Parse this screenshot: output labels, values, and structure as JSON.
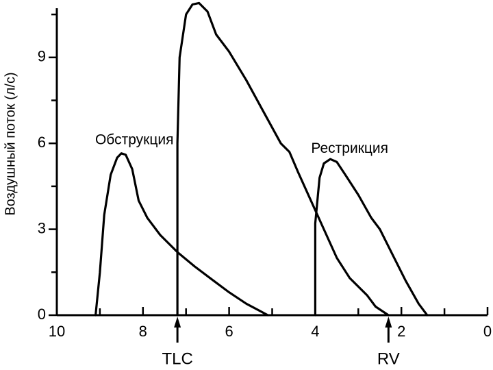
{
  "chart_data": {
    "type": "line",
    "title": "",
    "xlabel": "",
    "ylabel": "Воздушный поток (л/с)",
    "xlim": [
      10,
      0
    ],
    "ylim": [
      0,
      11
    ],
    "x_reversed": true,
    "x_ticks": [
      10,
      8,
      6,
      4,
      2,
      0
    ],
    "y_ticks": [
      0,
      3,
      6,
      9
    ],
    "grid": false,
    "series": [
      {
        "name": "",
        "x": [
          7.2,
          7.2,
          7.15,
          7.0,
          6.85,
          6.7,
          6.5,
          6.3,
          6.0,
          5.6,
          5.2,
          4.8,
          4.6,
          4.4,
          4.1,
          3.8,
          3.5,
          3.2,
          3.0,
          2.8,
          2.6,
          2.3
        ],
        "y": [
          0,
          6.0,
          9.0,
          10.5,
          10.85,
          10.9,
          10.6,
          9.8,
          9.2,
          8.2,
          7.1,
          6.0,
          5.7,
          5.0,
          4.0,
          3.0,
          2.0,
          1.3,
          1.0,
          0.7,
          0.3,
          0.0
        ]
      },
      {
        "name": "Обструкция",
        "x": [
          9.1,
          9.0,
          8.9,
          8.75,
          8.6,
          8.5,
          8.4,
          8.25,
          8.1,
          7.9,
          7.6,
          7.2,
          6.8,
          6.4,
          6.0,
          5.6,
          5.1
        ],
        "y": [
          0,
          1.5,
          3.5,
          4.9,
          5.5,
          5.65,
          5.6,
          5.1,
          4.0,
          3.4,
          2.8,
          2.2,
          1.7,
          1.25,
          0.8,
          0.4,
          0.0
        ]
      },
      {
        "name": "Рестрикция",
        "x": [
          4.0,
          4.0,
          3.9,
          3.8,
          3.65,
          3.5,
          3.3,
          3.0,
          2.7,
          2.5,
          2.2,
          1.9,
          1.6,
          1.4
        ],
        "y": [
          0,
          3.2,
          4.8,
          5.3,
          5.45,
          5.35,
          4.9,
          4.2,
          3.4,
          3.0,
          2.1,
          1.2,
          0.4,
          0.0
        ]
      }
    ],
    "annotations": [
      {
        "text": "Обструкция",
        "x": 8.2,
        "y": 6.1
      },
      {
        "text": "Рестрикция",
        "x": 3.2,
        "y": 5.8
      }
    ],
    "markers": [
      {
        "label": "TLC",
        "x": 7.2
      },
      {
        "label": "RV",
        "x": 2.3
      }
    ]
  }
}
